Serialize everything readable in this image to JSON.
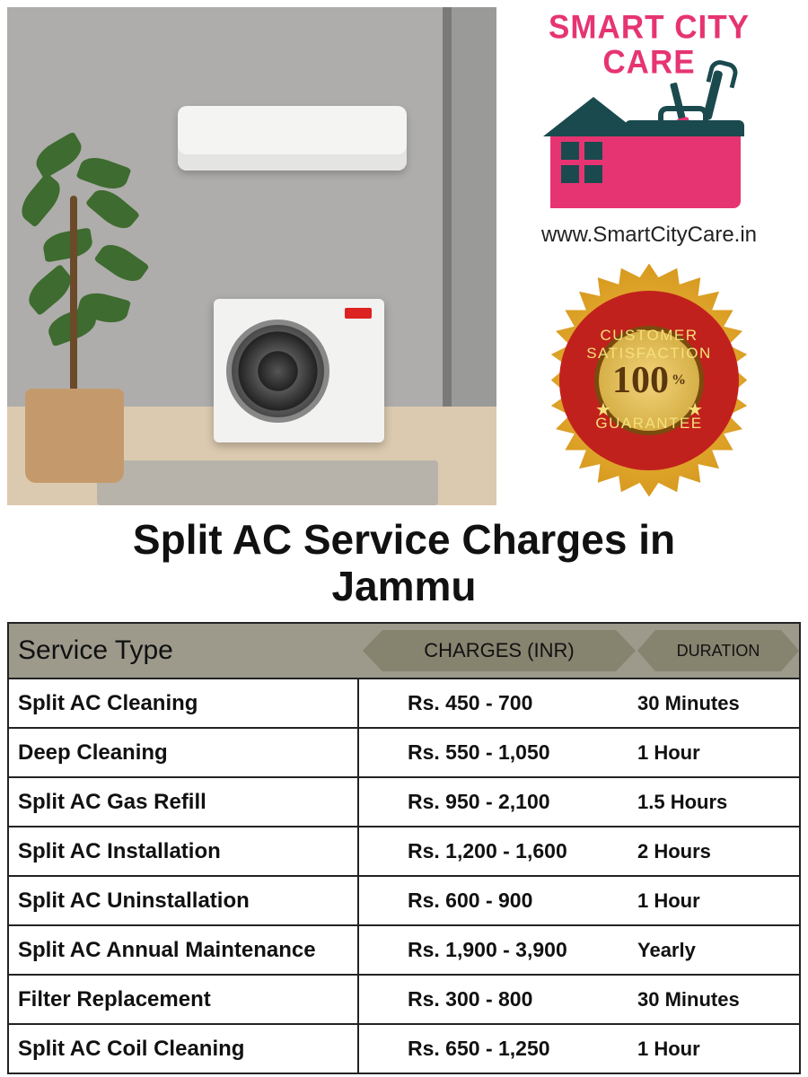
{
  "brand": {
    "name_line1": "SMART CITY",
    "name_line2": "CARE",
    "brand_color": "#e63472",
    "accent_color": "#1a4a4e",
    "url": "www.SmartCityCare.in"
  },
  "badge": {
    "top_text": "CUSTOMER SATISFACTION",
    "bottom_text": "GUARANTEE",
    "center_number": "100",
    "center_suffix": "%",
    "ring_color": "#c1211c",
    "gold_outer": "#f6c14d",
    "gold_inner": "#caa032",
    "text_color": "#f6e07a"
  },
  "title": {
    "line1": "Split AC Service Charges in",
    "line2": "Jammu",
    "fontsize": 46,
    "color": "#111111"
  },
  "table": {
    "header_bg": "#9d998b",
    "chip_bg": "#86836f",
    "border_color": "#222222",
    "columns": {
      "service": "Service Type",
      "charges": "CHARGES (INR)",
      "duration": "DURATION"
    },
    "rows": [
      {
        "service": "Split AC Cleaning",
        "charges": "Rs. 450 - 700",
        "duration": "30 Minutes"
      },
      {
        "service": "Deep Cleaning",
        "charges": "Rs. 550 - 1,050",
        "duration": "1 Hour"
      },
      {
        "service": "Split AC Gas Refill",
        "charges": "Rs. 950 - 2,100",
        "duration": "1.5 Hours"
      },
      {
        "service": "Split AC Installation",
        "charges": "Rs. 1,200 - 1,600",
        "duration": "2 Hours"
      },
      {
        "service": "Split AC Uninstallation",
        "charges": "Rs. 600 - 900",
        "duration": "1 Hour"
      },
      {
        "service": "Split AC Annual Maintenance",
        "charges": "Rs. 1,900 - 3,900",
        "duration": "Yearly"
      },
      {
        "service": "Filter Replacement",
        "charges": "Rs. 300 - 800",
        "duration": "30 Minutes"
      },
      {
        "service": "Split AC Coil Cleaning",
        "charges": "Rs. 650 - 1,250",
        "duration": "1 Hour"
      }
    ]
  }
}
